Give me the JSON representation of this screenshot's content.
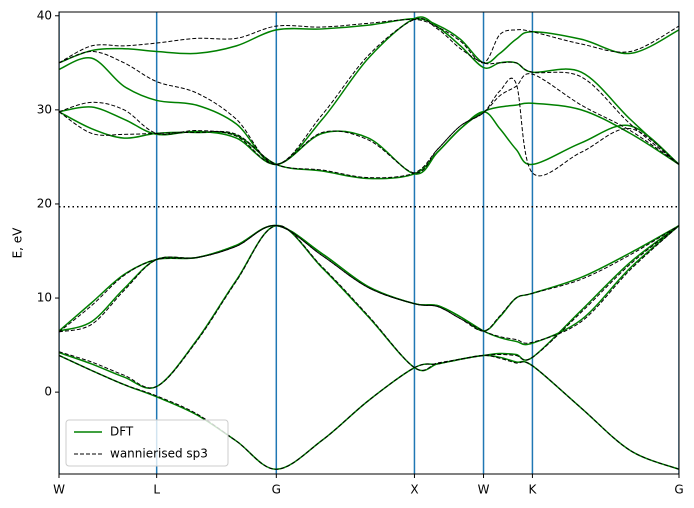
{
  "chart_data": {
    "type": "band_structure",
    "ylabel": "E, eV",
    "x": [
      0,
      0.236,
      0.471,
      0.707,
      0.996,
      1.284,
      1.573,
      1.906,
      2.24,
      2.573,
      2.74,
      2.906,
      3.073,
      3.191,
      3.309,
      3.427,
      3.781,
      4.135,
      4.488
    ],
    "xlim": [
      0,
      4.488
    ],
    "xticks": [
      {
        "value": 0,
        "label": "W"
      },
      {
        "value": 0.707,
        "label": "L"
      },
      {
        "value": 1.573,
        "label": "G"
      },
      {
        "value": 2.573,
        "label": "X"
      },
      {
        "value": 3.073,
        "label": "W"
      },
      {
        "value": 3.427,
        "label": "K"
      },
      {
        "value": 4.488,
        "label": "G"
      }
    ],
    "ylim": [
      -8.7,
      40.4
    ],
    "yticks": [
      0,
      10,
      20,
      30,
      40
    ],
    "vlines_color": "#1f77b4",
    "fermi_level": 19.7,
    "legend": "lower left",
    "series": [
      {
        "name": "DFT",
        "color": "#008000",
        "linestyle": "solid",
        "bands": [
          [
            3.9,
            2.3,
            0.8,
            -0.5,
            -2.4,
            -5.2,
            -8.2,
            -5.1,
            -0.9,
            2.6,
            3.0,
            3.5,
            3.9,
            3.7,
            3.2,
            2.8,
            -1.7,
            -6.2,
            -8.2
          ],
          [
            4.2,
            3.0,
            1.6,
            0.6,
            5.5,
            11.9,
            17.7,
            13.2,
            8.0,
            2.6,
            3.0,
            3.5,
            3.9,
            4.1,
            4.0,
            3.7,
            8.7,
            13.8,
            17.7
          ],
          [
            6.5,
            9.5,
            12.5,
            14.1,
            14.3,
            15.6,
            17.7,
            14.7,
            11.2,
            9.4,
            9.2,
            8.0,
            6.5,
            5.8,
            5.4,
            5.2,
            7.7,
            13.2,
            17.7
          ],
          [
            6.5,
            7.5,
            11.0,
            14.1,
            14.3,
            15.6,
            17.7,
            14.7,
            11.2,
            9.4,
            9.2,
            8.0,
            6.5,
            8.0,
            10.0,
            10.5,
            12.2,
            14.8,
            17.7
          ],
          [
            29.8,
            28.0,
            27.0,
            27.5,
            27.6,
            27.3,
            24.2,
            23.5,
            22.7,
            23.2,
            25.5,
            28.0,
            29.8,
            28.0,
            25.8,
            24.2,
            26.5,
            28.3,
            24.2
          ],
          [
            29.8,
            30.3,
            29.0,
            27.4,
            27.7,
            27.0,
            24.2,
            27.5,
            27.0,
            23.2,
            25.5,
            28.0,
            29.8,
            30.3,
            30.5,
            30.7,
            30.0,
            27.5,
            24.2
          ],
          [
            34.3,
            35.5,
            32.5,
            31.0,
            30.5,
            28.5,
            24.2,
            29.0,
            35.5,
            39.7,
            38.8,
            36.8,
            34.5,
            35.0,
            35.0,
            34.0,
            34.0,
            29.0,
            24.2
          ],
          [
            35.0,
            36.3,
            36.5,
            36.2,
            36.0,
            36.8,
            38.5,
            38.6,
            39.0,
            39.7,
            39.0,
            37.5,
            35.0,
            36.0,
            37.5,
            38.3,
            37.5,
            36.0,
            38.5
          ]
        ]
      },
      {
        "name": "wannierised sp3",
        "color": "#000000",
        "linestyle": "dashed",
        "bands": [
          [
            3.9,
            2.3,
            0.8,
            -0.4,
            -2.3,
            -5.2,
            -8.2,
            -5.1,
            -0.9,
            2.6,
            3.0,
            3.5,
            3.9,
            3.6,
            3.1,
            2.8,
            -1.7,
            -6.2,
            -8.2
          ],
          [
            4.3,
            3.2,
            1.8,
            0.6,
            5.4,
            11.8,
            17.7,
            13.3,
            8.1,
            2.6,
            3.1,
            3.5,
            3.9,
            4.0,
            3.9,
            3.7,
            8.5,
            13.6,
            17.7
          ],
          [
            6.4,
            9.2,
            12.4,
            14.1,
            14.3,
            15.5,
            17.7,
            14.5,
            11.1,
            9.4,
            9.1,
            7.8,
            6.5,
            5.9,
            5.6,
            5.3,
            7.5,
            13.0,
            17.7
          ],
          [
            6.4,
            7.2,
            10.8,
            14.1,
            14.3,
            15.5,
            17.7,
            14.5,
            11.1,
            9.4,
            9.1,
            7.8,
            6.5,
            8.1,
            10.0,
            10.5,
            12.0,
            14.6,
            17.7
          ],
          [
            29.8,
            27.5,
            27.4,
            27.5,
            27.6,
            27.4,
            24.2,
            23.6,
            22.8,
            23.3,
            25.8,
            28.3,
            29.7,
            32.0,
            32.8,
            23.3,
            25.5,
            28.0,
            24.2
          ],
          [
            29.8,
            30.8,
            30.0,
            27.5,
            27.8,
            27.2,
            24.2,
            27.6,
            26.8,
            23.3,
            25.8,
            28.3,
            29.7,
            31.5,
            32.5,
            33.8,
            30.5,
            27.8,
            24.2
          ],
          [
            35.0,
            36.2,
            35.0,
            33.0,
            31.8,
            29.0,
            24.2,
            29.5,
            35.8,
            39.6,
            38.6,
            36.5,
            35.0,
            35.0,
            35.0,
            34.0,
            33.5,
            28.5,
            24.2
          ],
          [
            35.0,
            36.8,
            36.8,
            37.1,
            37.6,
            37.6,
            38.9,
            38.8,
            39.2,
            39.6,
            38.8,
            37.3,
            35.0,
            38.0,
            38.5,
            38.3,
            37.0,
            36.2,
            38.9
          ]
        ]
      }
    ]
  }
}
